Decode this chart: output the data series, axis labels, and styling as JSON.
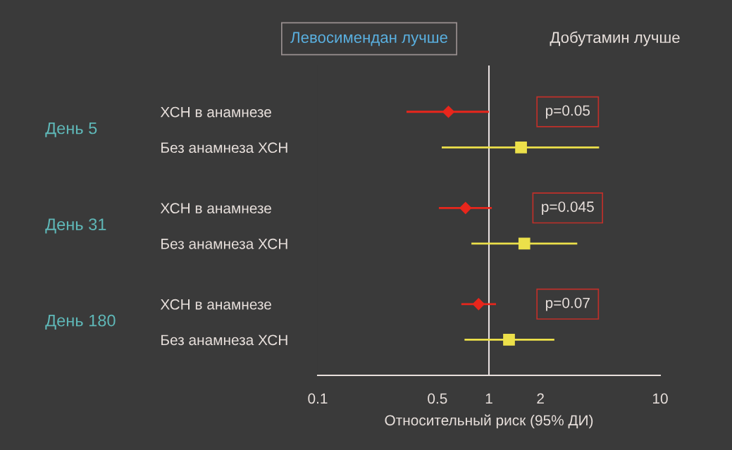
{
  "chart_data": {
    "type": "scatter",
    "orientation": "horizontal",
    "categories": [
      "ХСН в анамнезе",
      "Без анамнеза ХСН",
      "ХСН в анамнезе",
      "Без анамнеза ХСН",
      "ХСН в анамнезе",
      "Без анамнеза ХСН"
    ],
    "series": [
      {
        "color": "#e8261c",
        "marker": "diamond",
        "values": [
          0.58,
          null,
          0.73,
          null,
          0.87,
          null
        ],
        "errors": [
          [
            0.33,
            1.0
          ],
          null,
          [
            0.51,
            1.04
          ],
          null,
          [
            0.69,
            1.1
          ],
          null
        ]
      },
      {
        "color": "#ece04a",
        "marker": "square",
        "values": [
          null,
          1.54,
          null,
          1.61,
          null,
          1.31
        ],
        "errors": [
          null,
          [
            0.53,
            4.4
          ],
          null,
          [
            0.79,
            3.28
          ],
          null,
          [
            0.72,
            2.41
          ]
        ]
      }
    ],
    "xlim": [
      0.1,
      10
    ],
    "xticks": [
      0.1,
      0.5,
      1,
      2,
      10
    ],
    "log": "x",
    "grid": false,
    "xlabel": "Относительный риск (95% ДИ)",
    "ref_lines": [
      {
        "axis": "x",
        "value": 1,
        "color": "#e8e0e0"
      }
    ],
    "annotations": [
      "Левосимендан лучше",
      "Добутамин лучше",
      "День 5",
      "День 31",
      "День 180",
      "p=0.05",
      "p=0.045",
      "p=0.07"
    ]
  }
}
